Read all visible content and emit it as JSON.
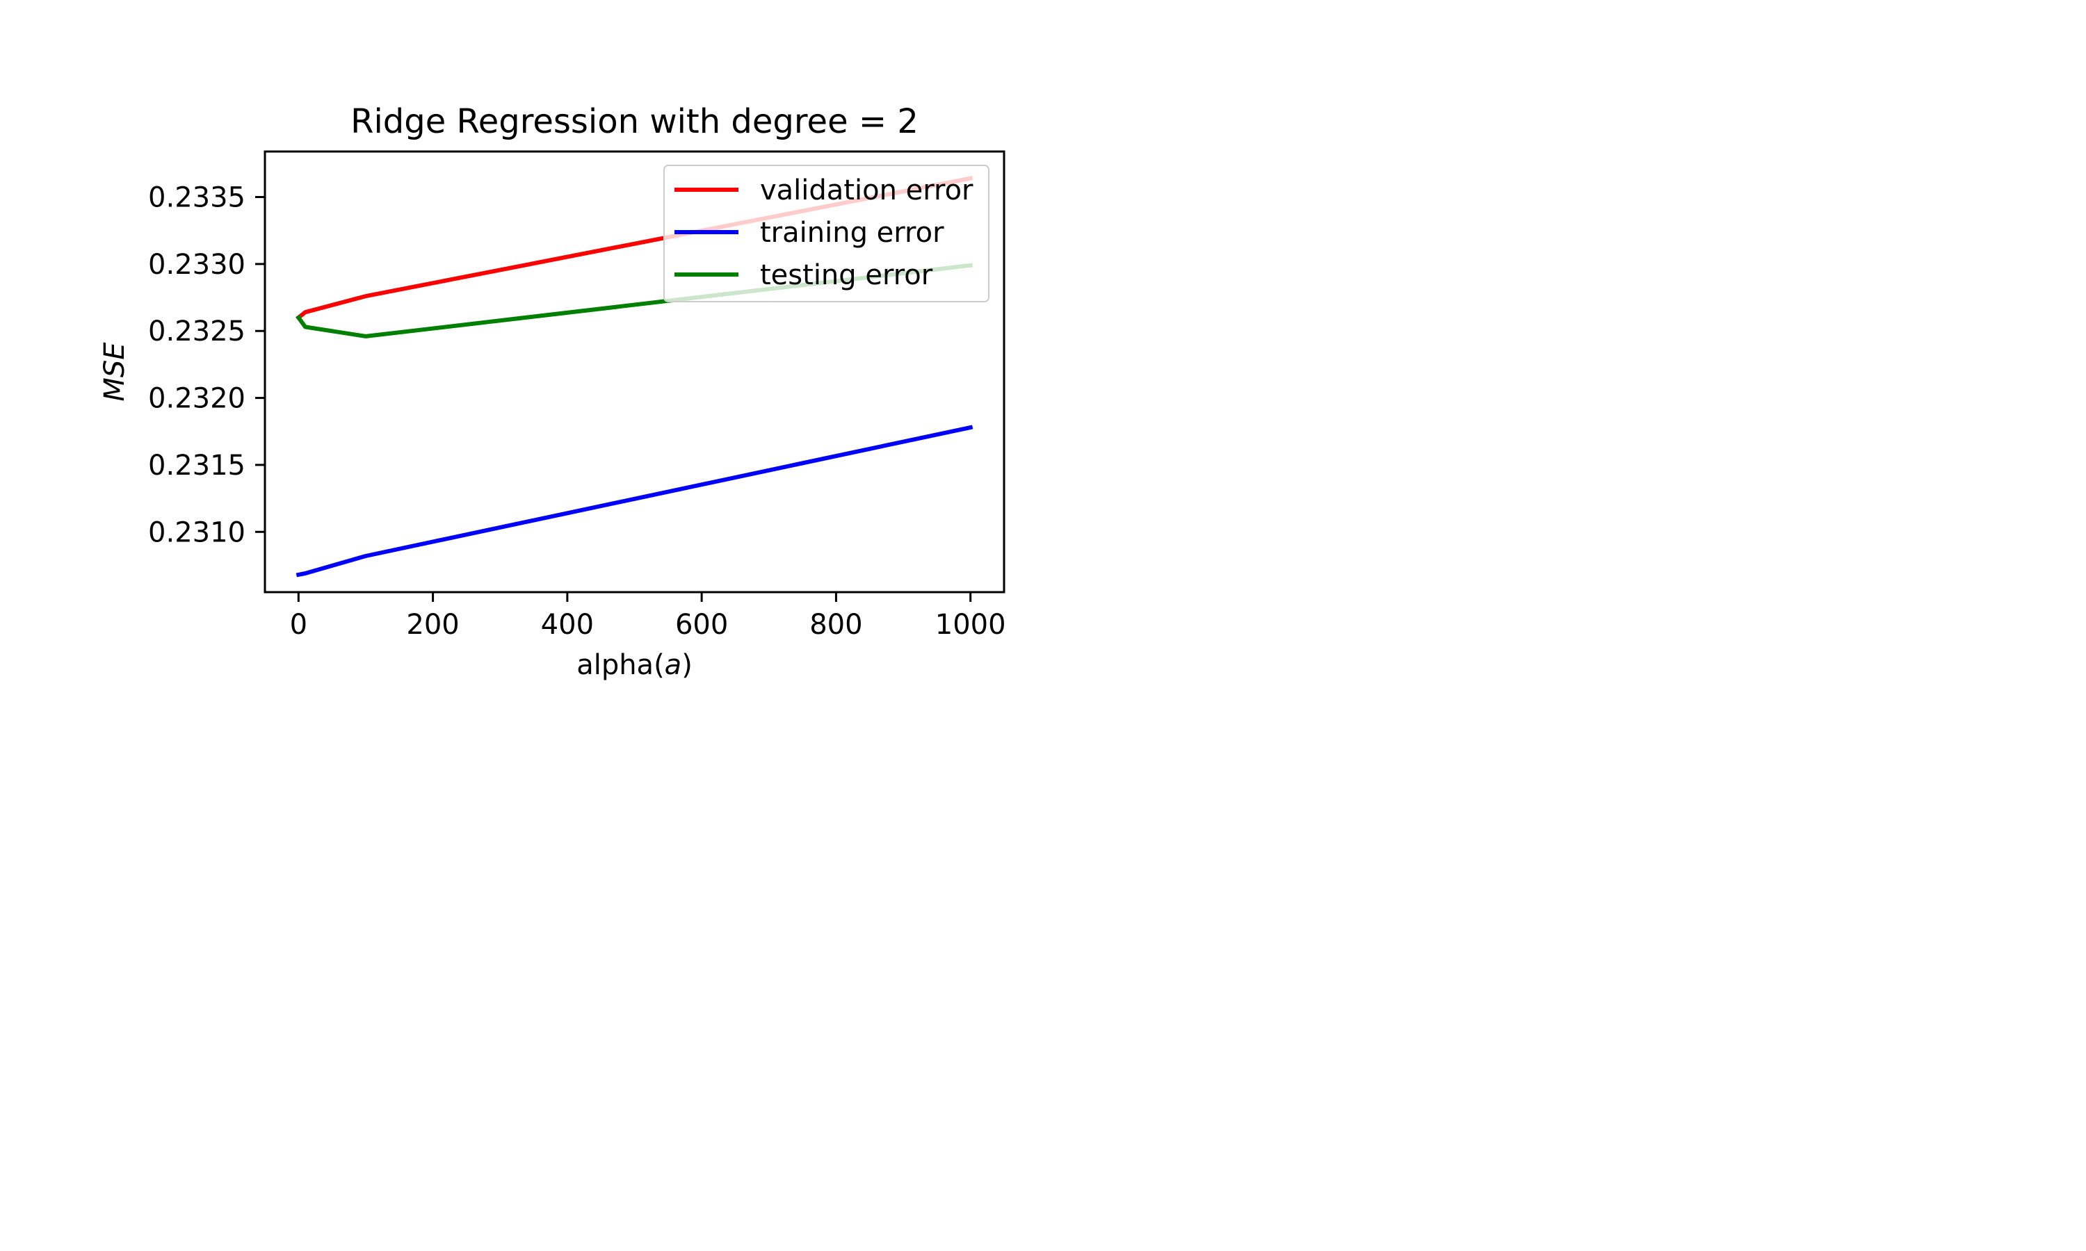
{
  "chart_data": {
    "type": "line",
    "title": "Ridge Regression with degree = 2",
    "xlabel": "alpha(a)",
    "xlabel_parts": {
      "prefix": "alpha(",
      "var": "a",
      "suffix": ")"
    },
    "ylabel": "MSE",
    "xlim": [
      -50,
      1050
    ],
    "ylim": [
      0.23055,
      0.23384
    ],
    "xticks": [
      0,
      200,
      400,
      600,
      800,
      1000
    ],
    "xtick_labels": [
      "0",
      "200",
      "400",
      "600",
      "800",
      "1000"
    ],
    "yticks": [
      0.231,
      0.2315,
      0.232,
      0.2325,
      0.233,
      0.2335
    ],
    "ytick_labels": [
      "0.2310",
      "0.2315",
      "0.2320",
      "0.2325",
      "0.2330",
      "0.2335"
    ],
    "grid": false,
    "legend_position": "upper right",
    "series": [
      {
        "name": "validation error",
        "color": "#ff0000",
        "x": [
          0,
          10,
          100,
          1000
        ],
        "y": [
          0.2326,
          0.23264,
          0.23276,
          0.23364
        ]
      },
      {
        "name": "training error",
        "color": "#0000ff",
        "x": [
          0,
          10,
          100,
          1000
        ],
        "y": [
          0.23068,
          0.23069,
          0.23082,
          0.23178
        ]
      },
      {
        "name": "testing error",
        "color": "#008000",
        "x": [
          0,
          10,
          100,
          1000
        ],
        "y": [
          0.2326,
          0.23253,
          0.23246,
          0.23299
        ]
      }
    ]
  }
}
